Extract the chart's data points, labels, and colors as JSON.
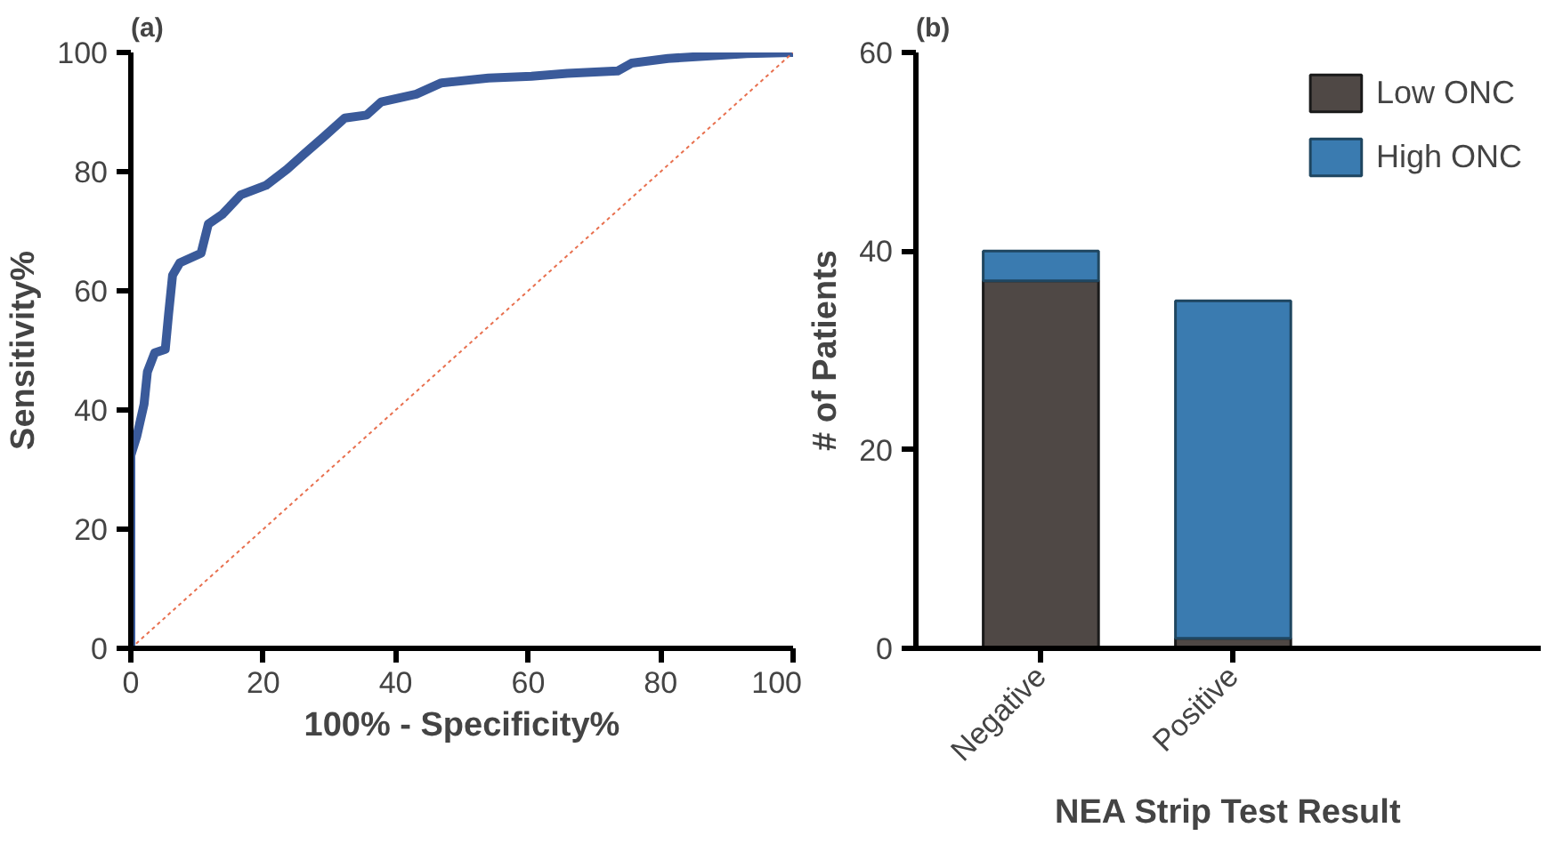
{
  "chart_data": [
    {
      "type": "line",
      "title": "(a)",
      "xlabel": "100% - Specificity%",
      "ylabel": "Sensitivity%",
      "xlim": [
        0,
        100
      ],
      "ylim": [
        0,
        100
      ],
      "xticks": [
        0,
        20,
        40,
        60,
        80,
        100
      ],
      "yticks": [
        0,
        20,
        40,
        60,
        80,
        100
      ],
      "grid": false,
      "legend": false,
      "series": [
        {
          "color": "#3a5a9a",
          "line_style": "solid",
          "x": [
            0,
            0,
            0,
            0.9,
            2,
            2.5,
            3.6,
            5.2,
            5.7,
            6.3,
            7.4,
            10.6,
            11.7,
            13.8,
            16.6,
            20.4,
            23.6,
            26.3,
            29.1,
            32.3,
            35.6,
            37.8,
            43.1,
            46.9,
            54,
            60.5,
            65.9,
            73.5,
            75.6,
            81.1,
            93,
            100
          ],
          "values": [
            0,
            18.3,
            32.4,
            35.6,
            41,
            46.4,
            49.6,
            50.2,
            56.1,
            62.6,
            64.7,
            66.3,
            71.2,
            72.8,
            76.1,
            77.7,
            80.4,
            83.1,
            85.8,
            89,
            89.5,
            91.7,
            93,
            94.9,
            95.7,
            96,
            96.5,
            96.9,
            98.2,
            99,
            99.8,
            100
          ]
        },
        {
          "color": "#e8704f",
          "line_style": "dotted",
          "x": [
            0,
            100
          ],
          "values": [
            0,
            100
          ]
        }
      ]
    },
    {
      "type": "bar",
      "stacked": true,
      "title": "(b)",
      "xlabel": "NEA Strip Test Result",
      "ylabel": "# of Patients",
      "categories": [
        "Negative",
        "Positive"
      ],
      "ylim": [
        0,
        60
      ],
      "yticks": [
        0,
        20,
        40,
        60
      ],
      "grid": false,
      "legend": "top right",
      "series": [
        {
          "name": "Low ONC",
          "color": "#4f4845",
          "values": [
            37,
            1
          ]
        },
        {
          "name": "High ONC",
          "color": "#3a7bb0",
          "values": [
            3,
            34
          ]
        }
      ]
    }
  ]
}
